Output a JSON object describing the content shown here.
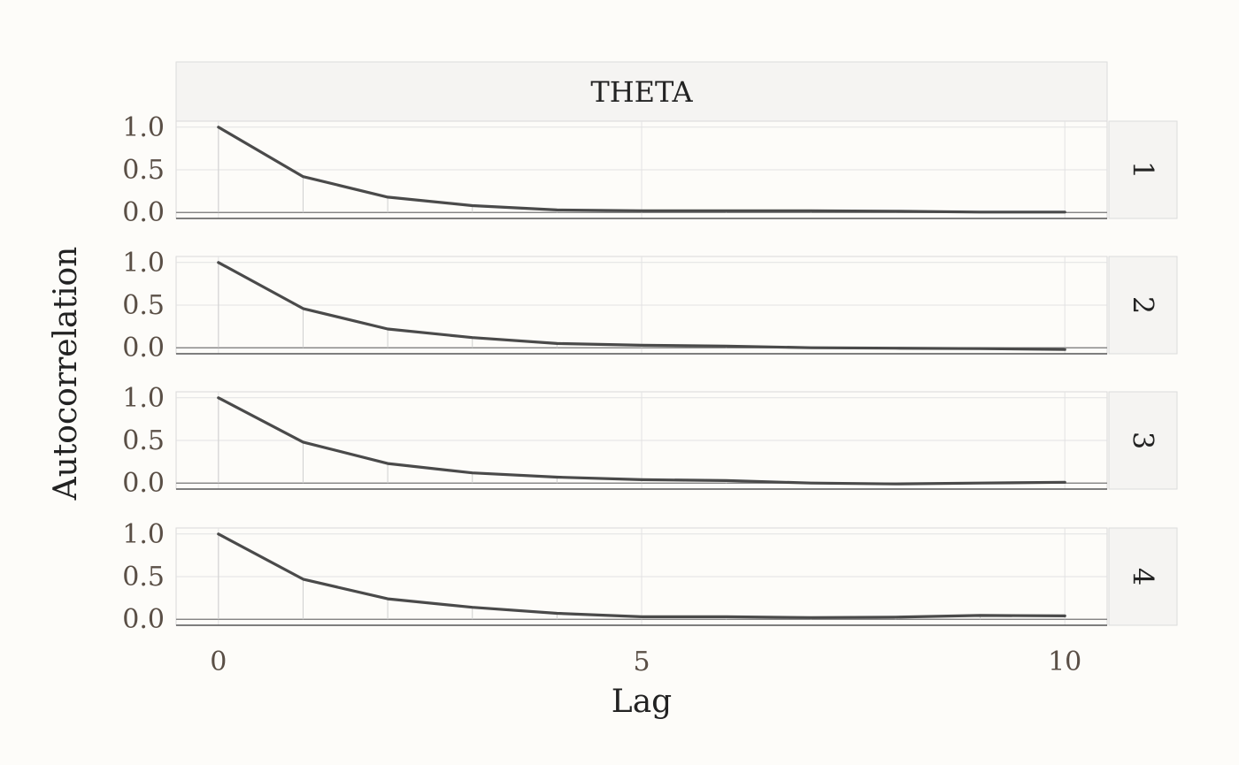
{
  "chart_data": {
    "type": "line",
    "column_strip": "THETA",
    "xlabel": "Lag",
    "ylabel": "Autocorrelation",
    "x": [
      0,
      1,
      2,
      3,
      4,
      5,
      6,
      7,
      8,
      9,
      10
    ],
    "xlim": [
      -0.5,
      10.5
    ],
    "ylim": [
      -0.07,
      1.07
    ],
    "x_ticks": [
      0,
      5,
      10
    ],
    "x_tick_labels": [
      "0",
      "5",
      "10"
    ],
    "y_ticks": [
      0,
      0.5,
      1
    ],
    "y_tick_labels": [
      "0.0",
      "0.5",
      "1.0"
    ],
    "grid": true,
    "colors": {
      "line": "#4a4a4a",
      "strip_fill": "#f5f4f2",
      "strip_border": "#dcdcdc",
      "grid": "#e2e2e2",
      "panel_border": "#d9d9d9",
      "axis": "#555555"
    },
    "series": [
      {
        "panel": "1",
        "values": [
          1.0,
          0.42,
          0.18,
          0.08,
          0.03,
          0.02,
          0.02,
          0.02,
          0.015,
          0.005,
          0.005
        ]
      },
      {
        "panel": "2",
        "values": [
          1.0,
          0.46,
          0.22,
          0.12,
          0.05,
          0.03,
          0.02,
          0.0,
          -0.005,
          -0.01,
          -0.02
        ]
      },
      {
        "panel": "3",
        "values": [
          1.0,
          0.48,
          0.23,
          0.12,
          0.07,
          0.04,
          0.03,
          0.0,
          -0.01,
          0.0,
          0.01
        ]
      },
      {
        "panel": "4",
        "values": [
          1.0,
          0.47,
          0.24,
          0.14,
          0.07,
          0.03,
          0.03,
          0.02,
          0.025,
          0.045,
          0.04
        ]
      }
    ]
  }
}
